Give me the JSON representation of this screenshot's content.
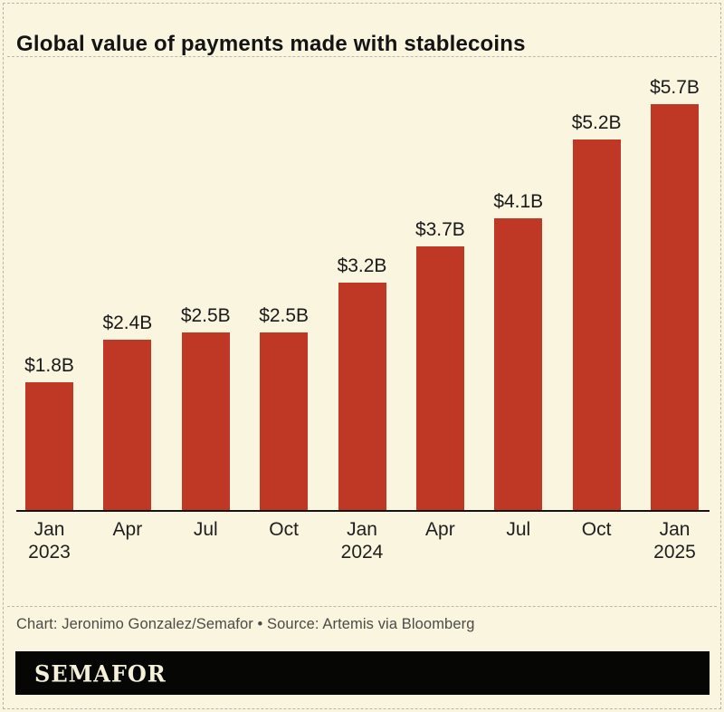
{
  "title": "Global value of payments made with stablecoins",
  "chart_data": {
    "type": "bar",
    "title": "Global value of payments made with stablecoins",
    "categories": [
      {
        "month": "Jan",
        "year": "2023"
      },
      {
        "month": "Apr",
        "year": ""
      },
      {
        "month": "Jul",
        "year": ""
      },
      {
        "month": "Oct",
        "year": ""
      },
      {
        "month": "Jan",
        "year": "2024"
      },
      {
        "month": "Apr",
        "year": ""
      },
      {
        "month": "Jul",
        "year": ""
      },
      {
        "month": "Oct",
        "year": ""
      },
      {
        "month": "Jan",
        "year": "2025"
      }
    ],
    "values": [
      1.8,
      2.4,
      2.5,
      2.5,
      3.2,
      3.7,
      4.1,
      5.2,
      5.7
    ],
    "value_labels": [
      "$1.8B",
      "$2.4B",
      "$2.5B",
      "$2.5B",
      "$3.2B",
      "$3.7B",
      "$4.1B",
      "$5.2B",
      "$5.7B"
    ],
    "unit": "USD billions",
    "ylim": [
      0,
      6.3
    ],
    "grid": false,
    "legend": false,
    "bar_color": "#bf3826"
  },
  "footer": {
    "credit": "Chart: Jeronimo Gonzalez/Semafor • Source: Artemis via Bloomberg",
    "logo": "SEMAFOR"
  },
  "colors": {
    "background": "#f9f5de",
    "bar": "#bf3826",
    "text": "#1a1a1a",
    "credit_text": "#4b4b47",
    "logo_bar": "#060604",
    "logo_text": "#f5f0da",
    "dashed_border": "#b5b5a9"
  }
}
